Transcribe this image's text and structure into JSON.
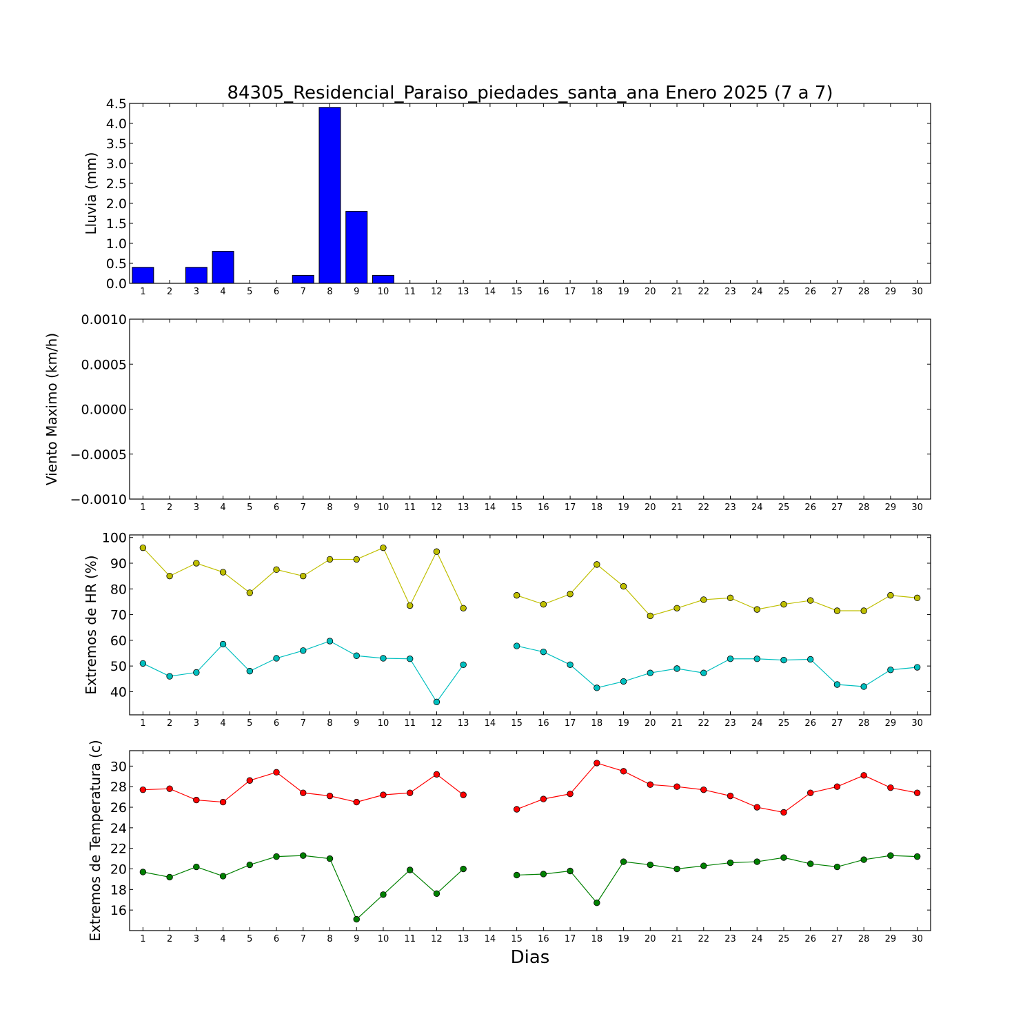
{
  "figure": {
    "title": "84305_Residencial_Paraiso_piedades_santa_ana Enero 2025  (7 a 7)",
    "xlabel": "Dias"
  },
  "chart_data": [
    {
      "type": "bar",
      "ylabel": "Lluvia (mm)",
      "ylim": [
        0,
        4.5
      ],
      "yticks": [
        "0.0",
        "0.5",
        "1.0",
        "1.5",
        "2.0",
        "2.5",
        "3.0",
        "3.5",
        "4.0",
        "4.5"
      ],
      "categories": [
        "1",
        "2",
        "3",
        "4",
        "5",
        "6",
        "7",
        "8",
        "9",
        "10",
        "11",
        "12",
        "13",
        "14",
        "15",
        "16",
        "17",
        "18",
        "19",
        "20",
        "21",
        "22",
        "23",
        "24",
        "25",
        "26",
        "27",
        "28",
        "29",
        "30"
      ],
      "series": [
        {
          "color": "#0000ff",
          "values": [
            0.4,
            0,
            0.4,
            0.8,
            0,
            0,
            0.2,
            4.4,
            1.8,
            0.2,
            0,
            0,
            0,
            0,
            0,
            0,
            0,
            0,
            0,
            0,
            0,
            0,
            0,
            0,
            0,
            0,
            0,
            0,
            0,
            0
          ]
        }
      ]
    },
    {
      "type": "line",
      "ylabel": "Viento Maximo (km/h)",
      "ylim": [
        -0.001,
        0.001
      ],
      "yticks": [
        "−0.0010",
        "−0.0005",
        "0.0000",
        "0.0005",
        "0.0010"
      ],
      "categories": [
        "1",
        "2",
        "3",
        "4",
        "5",
        "6",
        "7",
        "8",
        "9",
        "10",
        "11",
        "12",
        "13",
        "14",
        "15",
        "16",
        "17",
        "18",
        "19",
        "20",
        "21",
        "22",
        "23",
        "24",
        "25",
        "26",
        "27",
        "28",
        "29",
        "30"
      ],
      "series": []
    },
    {
      "type": "line",
      "ylabel": "Extremos de HR (%)",
      "ylim": [
        31,
        101
      ],
      "yticks": [
        "40",
        "50",
        "60",
        "70",
        "80",
        "90",
        "100"
      ],
      "categories": [
        "1",
        "2",
        "3",
        "4",
        "5",
        "6",
        "7",
        "8",
        "9",
        "10",
        "11",
        "12",
        "13",
        "14",
        "15",
        "16",
        "17",
        "18",
        "19",
        "20",
        "21",
        "22",
        "23",
        "24",
        "25",
        "26",
        "27",
        "28",
        "29",
        "30"
      ],
      "series": [
        {
          "color": "#bfbf00",
          "values": [
            96,
            85,
            90,
            86.5,
            78.5,
            87.5,
            85,
            91.5,
            91.5,
            96,
            73.5,
            94.5,
            72.5,
            null,
            77.5,
            74,
            78,
            89.5,
            81,
            69.5,
            72.5,
            75.8,
            76.5,
            72,
            74,
            75.5,
            71.5,
            71.5,
            77.5,
            76.5
          ]
        },
        {
          "color": "#00bfbf",
          "values": [
            51,
            46,
            47.5,
            58.5,
            48,
            53,
            56,
            59.7,
            54,
            53,
            52.8,
            36,
            50.5,
            null,
            57.8,
            55.5,
            50.5,
            41.5,
            44,
            47.3,
            49,
            47.3,
            52.8,
            52.8,
            52.3,
            52.6,
            42.8,
            42,
            48.5,
            49.5
          ]
        }
      ]
    },
    {
      "type": "line",
      "ylabel": "Extremos de Temperatura (c)",
      "ylim": [
        14,
        31.5
      ],
      "yticks": [
        "16",
        "18",
        "20",
        "22",
        "24",
        "26",
        "28",
        "30"
      ],
      "categories": [
        "1",
        "2",
        "3",
        "4",
        "5",
        "6",
        "7",
        "8",
        "9",
        "10",
        "11",
        "12",
        "13",
        "14",
        "15",
        "16",
        "17",
        "18",
        "19",
        "20",
        "21",
        "22",
        "23",
        "24",
        "25",
        "26",
        "27",
        "28",
        "29",
        "30"
      ],
      "series": [
        {
          "color": "#ff0000",
          "values": [
            27.7,
            27.8,
            26.7,
            26.5,
            28.6,
            29.4,
            27.4,
            27.1,
            26.5,
            27.2,
            27.4,
            29.2,
            27.2,
            null,
            25.8,
            26.8,
            27.3,
            30.3,
            29.5,
            28.2,
            28,
            27.7,
            27.1,
            26,
            25.5,
            27.4,
            28,
            29.1,
            27.9,
            27.4
          ]
        },
        {
          "color": "#008000",
          "values": [
            19.7,
            19.2,
            20.2,
            19.3,
            20.4,
            21.2,
            21.3,
            21,
            15.1,
            17.5,
            19.9,
            17.6,
            20,
            null,
            19.4,
            19.5,
            19.8,
            16.7,
            20.7,
            20.4,
            20,
            20.3,
            20.6,
            20.7,
            21.1,
            20.5,
            20.2,
            20.9,
            21.3,
            21.2
          ]
        }
      ]
    }
  ]
}
